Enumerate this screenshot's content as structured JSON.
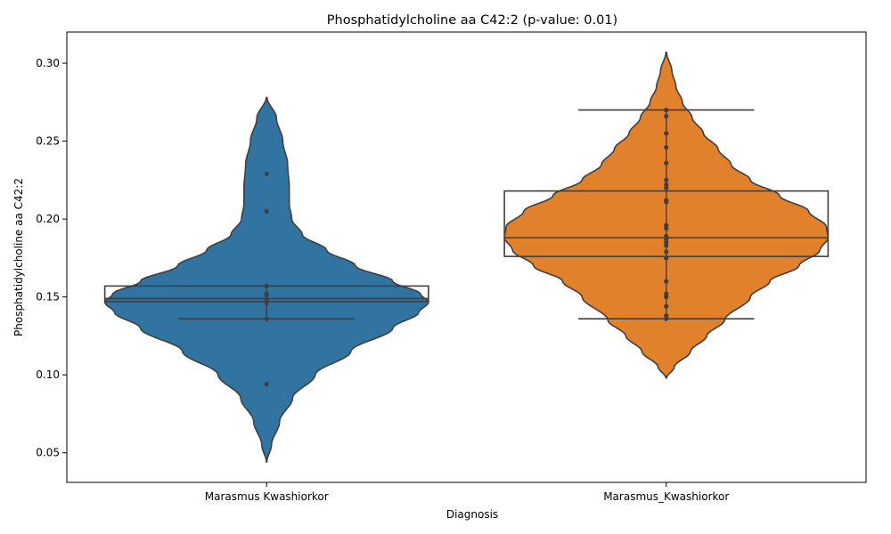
{
  "chart_data": {
    "type": "violin",
    "title": "Phosphatidylcholine aa C42:2 (p-value: 0.01)",
    "xlabel": "Diagnosis",
    "ylabel": "Phosphatidylcholine aa C42:2",
    "ylim": [
      0.031,
      0.32
    ],
    "yticks": [
      "0.05",
      "0.10",
      "0.15",
      "0.20",
      "0.25",
      "0.30"
    ],
    "ytick_values": [
      0.05,
      0.1,
      0.15,
      0.2,
      0.25,
      0.3
    ],
    "categories": [
      "Marasmus Kwashiorkor",
      "Marasmus_Kwashiorkor"
    ],
    "grid": false,
    "groups": [
      {
        "category": "Marasmus Kwashiorkor",
        "color": "#3274a1",
        "violin_range": [
          0.044,
          0.278
        ],
        "violin_profile": [
          [
            0.044,
            0.001
          ],
          [
            0.055,
            0.03
          ],
          [
            0.07,
            0.08
          ],
          [
            0.085,
            0.16
          ],
          [
            0.1,
            0.3
          ],
          [
            0.115,
            0.52
          ],
          [
            0.13,
            0.78
          ],
          [
            0.14,
            0.94
          ],
          [
            0.1465,
            1.0
          ],
          [
            0.152,
            0.95
          ],
          [
            0.16,
            0.78
          ],
          [
            0.17,
            0.55
          ],
          [
            0.18,
            0.37
          ],
          [
            0.19,
            0.22
          ],
          [
            0.2,
            0.155
          ],
          [
            0.21,
            0.14
          ],
          [
            0.22,
            0.14
          ],
          [
            0.235,
            0.13
          ],
          [
            0.25,
            0.1
          ],
          [
            0.265,
            0.06
          ],
          [
            0.278,
            0.002
          ]
        ],
        "points": [
          0.229,
          0.205,
          0.157,
          0.152,
          0.151,
          0.148,
          0.146,
          0.136,
          0.094
        ],
        "box": {
          "q1": 0.147,
          "median": 0.149,
          "q3": 0.157
        },
        "whiskers": [
          0.136,
          0.157
        ]
      },
      {
        "category": "Marasmus_Kwashiorkor",
        "color": "#e1812c",
        "violin_range": [
          0.098,
          0.307
        ],
        "violin_profile": [
          [
            0.098,
            0.002
          ],
          [
            0.105,
            0.05
          ],
          [
            0.115,
            0.15
          ],
          [
            0.125,
            0.25
          ],
          [
            0.135,
            0.36
          ],
          [
            0.15,
            0.52
          ],
          [
            0.16,
            0.64
          ],
          [
            0.17,
            0.82
          ],
          [
            0.18,
            0.95
          ],
          [
            0.188,
            1.0
          ],
          [
            0.195,
            0.99
          ],
          [
            0.205,
            0.88
          ],
          [
            0.215,
            0.7
          ],
          [
            0.225,
            0.52
          ],
          [
            0.235,
            0.4
          ],
          [
            0.245,
            0.32
          ],
          [
            0.255,
            0.23
          ],
          [
            0.265,
            0.16
          ],
          [
            0.275,
            0.1
          ],
          [
            0.285,
            0.06
          ],
          [
            0.295,
            0.035
          ],
          [
            0.307,
            0.002
          ]
        ],
        "points": [
          0.27,
          0.266,
          0.255,
          0.246,
          0.236,
          0.225,
          0.222,
          0.22,
          0.212,
          0.211,
          0.196,
          0.194,
          0.189,
          0.187,
          0.185,
          0.183,
          0.179,
          0.175,
          0.16,
          0.152,
          0.15,
          0.144,
          0.138,
          0.136
        ],
        "box": {
          "q1": 0.176,
          "median": 0.188,
          "q3": 0.218
        },
        "whiskers": [
          0.136,
          0.27
        ]
      }
    ]
  }
}
